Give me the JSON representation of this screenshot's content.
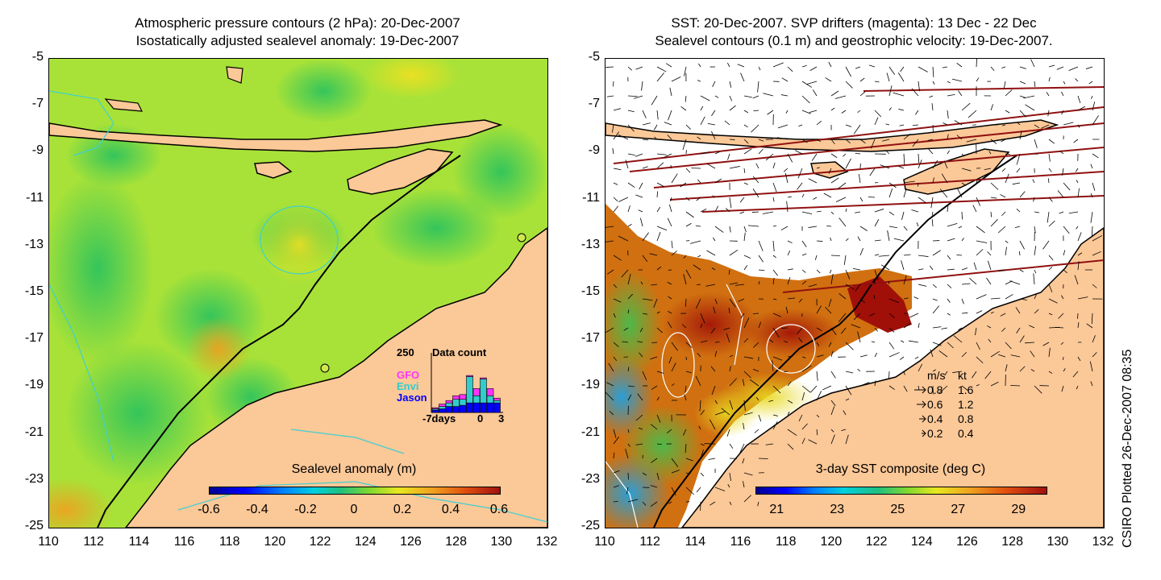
{
  "left_panel": {
    "title_line1": "Atmospheric pressure contours (2 hPa): 20-Dec-2007",
    "title_line2": "Isostatically adjusted sealevel anomaly: 19-Dec-2007",
    "colorbar": {
      "label": "Sealevel anomaly (m)",
      "ticks": [
        "-0.6",
        "-0.4",
        "-0.2",
        "0",
        "0.2",
        "0.4",
        "0.6"
      ],
      "range": [
        -0.6,
        0.6
      ]
    },
    "data_count": {
      "title": "Data count",
      "max_label": "250",
      "x_left_label": "-7days",
      "x_zero_label": "0",
      "x_right_label": "3",
      "legend": [
        {
          "name": "GFO",
          "color": "#ff33ff"
        },
        {
          "name": "Envi",
          "color": "#33cccc"
        },
        {
          "name": "Jason",
          "color": "#0000ff"
        }
      ],
      "bars": [
        {
          "day": -7,
          "jason": 10,
          "envi": 5,
          "gfo": 5
        },
        {
          "day": -6,
          "jason": 15,
          "envi": 10,
          "gfo": 10
        },
        {
          "day": -5,
          "jason": 25,
          "envi": 15,
          "gfo": 10
        },
        {
          "day": -4,
          "jason": 25,
          "envi": 30,
          "gfo": 15
        },
        {
          "day": -3,
          "jason": 30,
          "envi": 25,
          "gfo": 20
        },
        {
          "day": -2,
          "jason": 40,
          "envi": 110,
          "gfo": 5
        },
        {
          "day": -1,
          "jason": 40,
          "envi": 30,
          "gfo": 30
        },
        {
          "day": 0,
          "jason": 40,
          "envi": 100,
          "gfo": 5
        },
        {
          "day": 1,
          "jason": 40,
          "envi": 30,
          "gfo": 30
        },
        {
          "day": 2,
          "jason": 40,
          "envi": 10,
          "gfo": 10
        }
      ]
    }
  },
  "right_panel": {
    "title_line1": "SST: 20-Dec-2007. SVP drifters (magenta): 13 Dec - 22 Dec",
    "title_line2": "Sealevel contours (0.1 m) and geostrophic velocity: 19-Dec-2007.",
    "colorbar": {
      "label": "3-day SST composite (deg C)",
      "ticks": [
        "21",
        "23",
        "25",
        "27",
        "29"
      ],
      "range": [
        20.3,
        29.9
      ]
    },
    "velocity_legend": {
      "header_ms": "m/s",
      "header_kt": "kt",
      "rows": [
        {
          "ms": "0.8",
          "kt": "1.6"
        },
        {
          "ms": "0.6",
          "kt": "1.2"
        },
        {
          "ms": "0.4",
          "kt": "0.8"
        },
        {
          "ms": "0.2",
          "kt": "0.4"
        }
      ]
    }
  },
  "axes": {
    "lat_ticks": [
      "-5",
      "-7",
      "-9",
      "-11",
      "-13",
      "-15",
      "-17",
      "-19",
      "-21",
      "-23",
      "-25"
    ],
    "lon_ticks": [
      "110",
      "112",
      "114",
      "116",
      "118",
      "120",
      "122",
      "124",
      "126",
      "128",
      "130",
      "132"
    ],
    "lat_range": [
      -25,
      -5
    ],
    "lon_range": [
      110,
      132
    ]
  },
  "credit": "CSIRO Plotted 26-Dec-2007 08:35",
  "colors": {
    "land": "#fbc898",
    "ocean_base": "#a8e238",
    "sst_warm": "#c84010",
    "contour": "#40d0d0"
  }
}
